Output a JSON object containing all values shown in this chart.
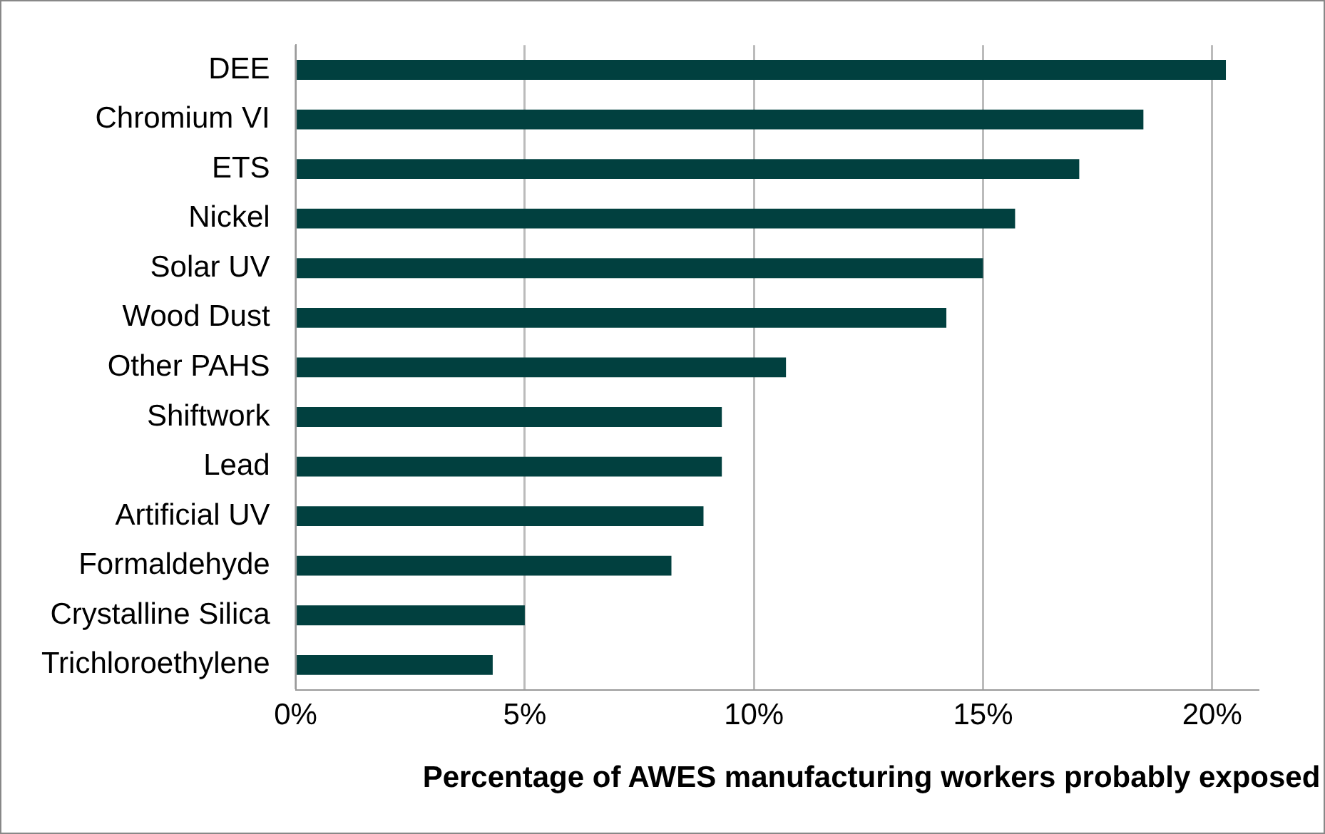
{
  "chart_data": {
    "type": "bar",
    "orientation": "horizontal",
    "xlabel": "Percentage of AWES manufacturing workers probably exposed",
    "categories": [
      "DEE",
      "Chromium VI",
      "ETS",
      "Nickel",
      "Solar UV",
      "Wood Dust",
      "Other PAHS",
      "Shiftwork",
      "Lead",
      "Artificial UV",
      "Formaldehyde",
      "Crystalline Silica",
      "Trichloroethylene"
    ],
    "values": [
      20.3,
      18.5,
      17.1,
      15.7,
      15.0,
      14.2,
      10.7,
      9.3,
      9.3,
      8.9,
      8.2,
      5.0,
      4.3
    ],
    "color": "#01403f",
    "xlim": [
      0,
      21
    ],
    "xticks": [
      {
        "value": 0,
        "label": "0%"
      },
      {
        "value": 5,
        "label": "5%"
      },
      {
        "value": 10,
        "label": "10%"
      },
      {
        "value": 15,
        "label": "15%"
      },
      {
        "value": 20,
        "label": "20%"
      }
    ],
    "grid": "x",
    "legend": false
  }
}
